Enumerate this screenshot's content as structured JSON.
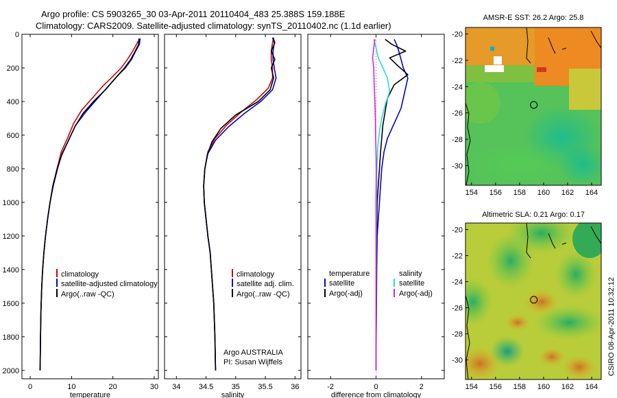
{
  "header": {
    "line1": "Argo profile: CS 5903265_30 03-Apr-2011 20110404_483 25.388S 159.188E",
    "line2": "Climatology: CARS2009. Satellite-adjusted climatology: synTS_20110402.nc (1.1d earlier)"
  },
  "colors": {
    "climatology": "#cc0000",
    "satellite": "#0000cc",
    "argo": "#000000",
    "sat_cyan": "#22dddd",
    "argo_magenta": "#dd22dd"
  },
  "chart_data": [
    {
      "type": "line",
      "xlabel": "temperature",
      "ylabel": "",
      "xlim": [
        -2,
        31
      ],
      "ylim": [
        2050,
        0
      ],
      "y_reversed": true,
      "xticks": [
        0,
        10,
        20,
        30
      ],
      "yticks": [
        0,
        200,
        400,
        600,
        800,
        1000,
        1200,
        1400,
        1600,
        1800,
        2000
      ],
      "series": [
        {
          "name": "climatology",
          "color": "#cc0000",
          "x": [
            26.1,
            25.7,
            24.8,
            23.5,
            22.0,
            20.0,
            17.5,
            15.0,
            12.5,
            10.5,
            9.0,
            7.5,
            6.5,
            5.5,
            4.8,
            4.2,
            3.7,
            3.3,
            3.0,
            2.8,
            2.6,
            2.5,
            2.4
          ],
          "y": [
            40,
            60,
            100,
            150,
            200,
            250,
            310,
            380,
            450,
            530,
            620,
            700,
            800,
            900,
            1000,
            1100,
            1200,
            1300,
            1400,
            1500,
            1650,
            1800,
            2000
          ]
        },
        {
          "name": "satellite-adjusted climatology",
          "color": "#0000cc",
          "x": [
            26.6,
            26.4,
            25.5,
            24.5,
            23.0,
            21.0,
            18.5,
            16.0,
            13.5,
            11.0,
            9.3,
            7.7,
            6.6,
            5.6,
            4.8,
            4.2,
            3.7,
            3.3,
            3.0,
            2.8,
            2.6,
            2.5,
            2.4
          ],
          "y": [
            25,
            60,
            100,
            150,
            200,
            250,
            320,
            390,
            460,
            540,
            630,
            710,
            800,
            900,
            1000,
            1100,
            1200,
            1300,
            1400,
            1500,
            1650,
            1800,
            2000
          ]
        },
        {
          "name": "Argo(..raw -QC)",
          "color": "#000000",
          "x": [
            26.3,
            26.2,
            25.4,
            24.3,
            22.8,
            21.0,
            18.2,
            15.3,
            12.8,
            10.8,
            9.1,
            7.6,
            6.5,
            5.5,
            4.8,
            4.2,
            3.7,
            3.3,
            3.0,
            2.8,
            2.6,
            2.5,
            2.4
          ],
          "y": [
            25,
            60,
            100,
            150,
            200,
            250,
            330,
            400,
            470,
            550,
            640,
            720,
            800,
            900,
            1000,
            1100,
            1200,
            1300,
            1400,
            1500,
            1650,
            1800,
            2000
          ]
        }
      ],
      "legend": [
        "climatology",
        "satellite-adjusted climatology",
        "Argo(..raw -QC)"
      ]
    },
    {
      "type": "line",
      "xlabel": "salinity",
      "xlim": [
        33.8,
        36.1
      ],
      "ylim": [
        2050,
        0
      ],
      "y_reversed": true,
      "xticks": [
        34,
        34.5,
        35,
        35.5,
        36
      ],
      "yticks": [
        0,
        200,
        400,
        600,
        800,
        1000,
        1200,
        1400,
        1600,
        1800,
        2000
      ],
      "series": [
        {
          "name": "climatology",
          "color": "#cc0000",
          "x": [
            35.64,
            35.62,
            35.6,
            35.6,
            35.62,
            35.62,
            35.55,
            35.35,
            35.1,
            34.85,
            34.65,
            34.53,
            34.48,
            34.46,
            34.47,
            34.5,
            34.53,
            34.57,
            34.6,
            34.63,
            34.65,
            34.66
          ],
          "y": [
            20,
            50,
            100,
            150,
            200,
            260,
            320,
            390,
            460,
            540,
            620,
            700,
            800,
            900,
            1000,
            1100,
            1200,
            1300,
            1450,
            1600,
            1800,
            2000
          ]
        },
        {
          "name": "satellite adj. clim.",
          "color": "#0000cc",
          "x": [
            35.62,
            35.65,
            35.63,
            35.63,
            35.65,
            35.68,
            35.62,
            35.42,
            35.15,
            34.88,
            34.66,
            34.53,
            34.48,
            34.46,
            34.47,
            34.5,
            34.53,
            34.57,
            34.6,
            34.63,
            34.65,
            34.66
          ],
          "y": [
            20,
            50,
            100,
            150,
            200,
            260,
            330,
            400,
            470,
            550,
            630,
            710,
            800,
            900,
            1000,
            1100,
            1200,
            1300,
            1450,
            1600,
            1800,
            2000
          ]
        },
        {
          "name": "Argo(..raw -QC)",
          "color": "#000000",
          "x": [
            35.63,
            35.66,
            35.6,
            35.66,
            35.6,
            35.64,
            35.58,
            35.38,
            35.0,
            34.75,
            34.6,
            34.52,
            34.48,
            34.46,
            34.47,
            34.5,
            34.53,
            34.57,
            34.6,
            34.63,
            34.65,
            34.66
          ],
          "y": [
            20,
            50,
            100,
            150,
            200,
            260,
            330,
            400,
            480,
            560,
            640,
            720,
            800,
            900,
            1000,
            1100,
            1200,
            1300,
            1450,
            1600,
            1800,
            2000
          ]
        }
      ],
      "legend": [
        "climatology",
        "satellite adj. clim.",
        "Argo(..raw -QC)"
      ],
      "annotations": [
        "Argo AUSTRALIA",
        "PI: Susan Wijffels"
      ]
    },
    {
      "type": "line",
      "xlabel": "difference from climatology",
      "xlim": [
        -3,
        3
      ],
      "ylim": [
        2050,
        0
      ],
      "y_reversed": true,
      "xticks": [
        -2,
        0,
        2
      ],
      "yticks": [
        0,
        200,
        400,
        600,
        800,
        1000,
        1200,
        1400,
        1600,
        1800,
        2000
      ],
      "series": [
        {
          "name": "temperature satellite",
          "color": "#0000cc",
          "x": [
            0.8,
            0.9,
            1.0,
            1.1,
            1.2,
            1.4,
            1.3,
            1.2,
            1.1,
            0.9,
            0.7,
            0.5,
            0.35,
            0.25,
            0.2,
            0.15,
            0.1,
            0.05,
            0.03,
            0.02,
            0.01,
            0.0
          ],
          "y": [
            30,
            60,
            100,
            150,
            200,
            260,
            320,
            380,
            440,
            500,
            560,
            620,
            700,
            800,
            900,
            1000,
            1100,
            1200,
            1400,
            1600,
            1800,
            2000
          ]
        },
        {
          "name": "temperature Argo(-adj)",
          "color": "#000000",
          "x": [
            0.4,
            0.7,
            1.3,
            0.6,
            0.9,
            1.4,
            0.8,
            0.5,
            0.4,
            0.3,
            0.25,
            0.2,
            0.15,
            0.1,
            0.05,
            0.03,
            0.02,
            0.01,
            0.0
          ],
          "y": [
            30,
            60,
            100,
            140,
            180,
            240,
            300,
            380,
            460,
            540,
            620,
            700,
            800,
            900,
            1000,
            1200,
            1400,
            1700,
            2000
          ]
        },
        {
          "name": "salinity satellite",
          "color": "#22dddd",
          "x": [
            -0.1,
            0.0,
            0.1,
            0.3,
            0.5,
            0.6,
            0.4,
            0.25,
            0.15,
            0.08,
            0.05,
            0.03,
            0.02,
            0.01,
            0.0
          ],
          "y": [
            30,
            80,
            140,
            200,
            260,
            340,
            420,
            500,
            580,
            660,
            750,
            850,
            1000,
            1300,
            2000
          ]
        },
        {
          "name": "salinity Argo(-adj)",
          "color": "#dd22dd",
          "x": [
            -0.05,
            -0.1,
            -0.15,
            -0.1,
            -0.08,
            -0.05,
            -0.03,
            -0.02,
            0.0,
            0.01,
            0.0,
            0.0
          ],
          "y": [
            30,
            80,
            140,
            200,
            300,
            400,
            500,
            600,
            700,
            800,
            1000,
            2000
          ]
        }
      ],
      "legend_headers": [
        "temperature",
        "salinity"
      ],
      "legend": [
        "satellite",
        "Argo(-adj)",
        "satellite",
        "Argo(-adj)"
      ]
    }
  ],
  "maps": [
    {
      "title": "AMSR-E SST: 26.2 Argo: 25.8",
      "xticks": [
        "154",
        "156",
        "158",
        "160",
        "162",
        "164"
      ],
      "yticks": [
        "-20",
        "-22",
        "-24",
        "-26",
        "-28",
        "-30"
      ],
      "xlim": [
        153.5,
        164.8
      ],
      "ylim": [
        -31.5,
        -19.5
      ],
      "profile_marker": {
        "lon": 159.188,
        "lat": -25.388
      }
    },
    {
      "title": "Altimetric SLA: 0.21 Argo: 0.17",
      "xticks": [
        "154",
        "156",
        "158",
        "160",
        "162",
        "164"
      ],
      "yticks": [
        "-20",
        "-22",
        "-24",
        "-26",
        "-28",
        "-30"
      ],
      "xlim": [
        153.5,
        164.8
      ],
      "ylim": [
        -31.5,
        -19.5
      ],
      "profile_marker": {
        "lon": 159.188,
        "lat": -25.388
      }
    }
  ],
  "footer": {
    "stamp": "CSIRO 08-Apr-2011 10:32:12"
  }
}
